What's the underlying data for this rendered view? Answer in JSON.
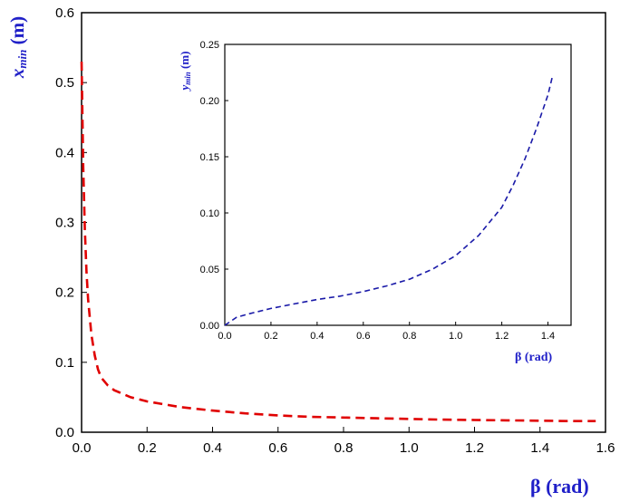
{
  "chart_data": [
    {
      "type": "line",
      "xlabel": "β (rad)",
      "ylabel": "x",
      "ylabel_sub": "min",
      "ylabel_unit": " (m)",
      "xlim": [
        0,
        1.6
      ],
      "ylim": [
        0,
        0.6
      ],
      "xticks": [
        "0.0",
        "0.2",
        "0.4",
        "0.6",
        "0.8",
        "1.0",
        "1.2",
        "1.4",
        "1.6"
      ],
      "yticks": [
        "0.0",
        "0.1",
        "0.2",
        "0.3",
        "0.4",
        "0.5",
        "0.6"
      ],
      "series": [
        {
          "color": "#e00000",
          "line_style": "dashed",
          "x": [
            0.0,
            0.005,
            0.01,
            0.015,
            0.02,
            0.03,
            0.04,
            0.05,
            0.06,
            0.08,
            0.1,
            0.15,
            0.2,
            0.3,
            0.4,
            0.5,
            0.6,
            0.7,
            0.8,
            0.9,
            1.0,
            1.1,
            1.2,
            1.3,
            1.4,
            1.5,
            1.57
          ],
          "y": [
            0.53,
            0.38,
            0.29,
            0.23,
            0.19,
            0.14,
            0.11,
            0.09,
            0.078,
            0.067,
            0.06,
            0.05,
            0.044,
            0.036,
            0.031,
            0.027,
            0.024,
            0.022,
            0.021,
            0.02,
            0.019,
            0.018,
            0.0175,
            0.017,
            0.0165,
            0.016,
            0.016
          ]
        }
      ]
    },
    {
      "type": "line",
      "xlabel": "β (rad)",
      "ylabel": "y",
      "ylabel_sub": "min",
      "ylabel_unit": " (m)",
      "xlim": [
        0,
        1.5
      ],
      "ylim": [
        0,
        0.25
      ],
      "xticks": [
        "0.0",
        "0.2",
        "0.4",
        "0.6",
        "0.8",
        "1.0",
        "1.2",
        "1.4"
      ],
      "yticks": [
        "0.00",
        "0.05",
        "0.10",
        "0.15",
        "0.20",
        "0.25"
      ],
      "series": [
        {
          "color": "#1a1aa8",
          "line_style": "dashed",
          "x": [
            0.0,
            0.05,
            0.1,
            0.2,
            0.3,
            0.4,
            0.5,
            0.6,
            0.7,
            0.8,
            0.9,
            1.0,
            1.1,
            1.2,
            1.25,
            1.3,
            1.35,
            1.4,
            1.42
          ],
          "y": [
            0.0,
            0.007,
            0.01,
            0.015,
            0.019,
            0.023,
            0.026,
            0.03,
            0.035,
            0.041,
            0.05,
            0.062,
            0.08,
            0.105,
            0.125,
            0.148,
            0.175,
            0.205,
            0.222
          ]
        }
      ]
    }
  ]
}
